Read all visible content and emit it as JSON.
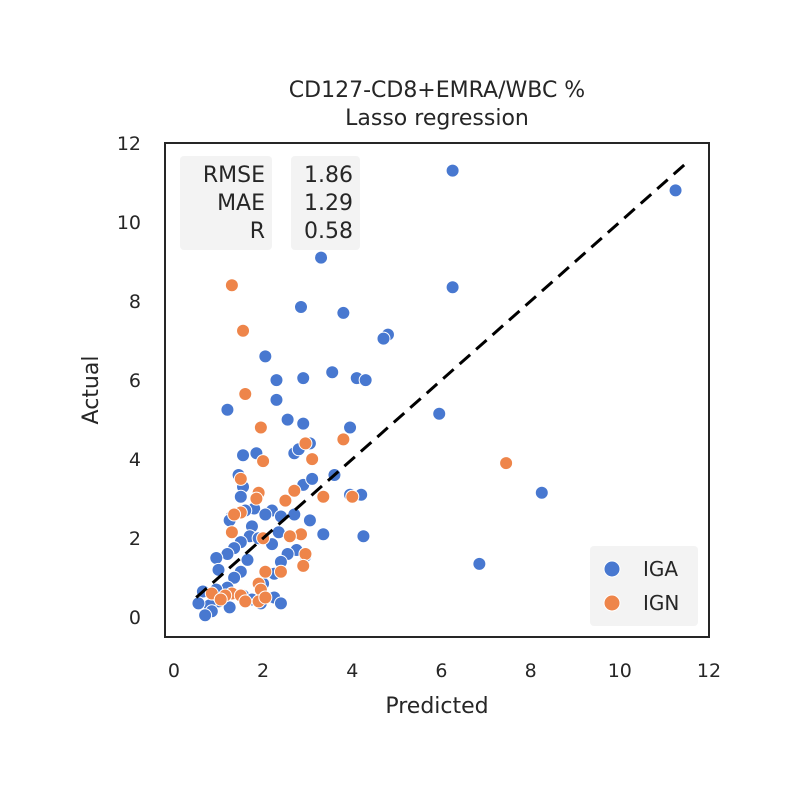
{
  "chart_data": {
    "type": "scatter",
    "title": "CD127-CD8+EMRA/WBC %",
    "subtitle": "Lasso regression",
    "xlabel": "Predicted",
    "ylabel": "Actual",
    "xlim": [
      -0.2,
      12
    ],
    "ylim": [
      -0.5,
      12
    ],
    "xticks": [
      0,
      2,
      4,
      6,
      8,
      10,
      12
    ],
    "yticks": [
      0,
      2,
      4,
      6,
      8,
      10,
      12
    ],
    "grid": false,
    "legend_position": "bottom-right",
    "identity_line": {
      "style": "dashed",
      "color": "#000000",
      "from": 0.5,
      "to": 11.5
    },
    "stats": {
      "labels": [
        "RMSE",
        "MAE",
        "R"
      ],
      "values": [
        "1.86",
        "1.29",
        "0.58"
      ]
    },
    "series": [
      {
        "name": "IGA",
        "color": "#4878d0",
        "points": [
          [
            11.25,
            10.8
          ],
          [
            6.25,
            11.3
          ],
          [
            3.3,
            9.1
          ],
          [
            6.25,
            8.35
          ],
          [
            2.85,
            7.85
          ],
          [
            3.8,
            7.7
          ],
          [
            4.8,
            7.15
          ],
          [
            4.7,
            7.05
          ],
          [
            2.05,
            6.6
          ],
          [
            3.55,
            6.2
          ],
          [
            4.1,
            6.05
          ],
          [
            4.3,
            6.0
          ],
          [
            2.9,
            6.05
          ],
          [
            2.3,
            6.0
          ],
          [
            2.3,
            5.5
          ],
          [
            1.2,
            5.25
          ],
          [
            5.95,
            5.15
          ],
          [
            2.55,
            5.0
          ],
          [
            2.9,
            4.9
          ],
          [
            3.95,
            4.8
          ],
          [
            1.55,
            4.1
          ],
          [
            1.85,
            4.15
          ],
          [
            2.7,
            4.15
          ],
          [
            3.05,
            4.4
          ],
          [
            2.8,
            4.25
          ],
          [
            3.6,
            3.6
          ],
          [
            1.45,
            3.6
          ],
          [
            2.9,
            3.35
          ],
          [
            3.1,
            3.5
          ],
          [
            3.95,
            3.1
          ],
          [
            4.2,
            3.1
          ],
          [
            8.25,
            3.15
          ],
          [
            1.55,
            3.3
          ],
          [
            1.5,
            3.05
          ],
          [
            1.8,
            2.75
          ],
          [
            1.6,
            2.7
          ],
          [
            2.2,
            2.7
          ],
          [
            2.4,
            2.55
          ],
          [
            1.3,
            2.55
          ],
          [
            2.05,
            2.6
          ],
          [
            2.7,
            2.6
          ],
          [
            3.05,
            2.45
          ],
          [
            1.25,
            2.45
          ],
          [
            1.75,
            2.3
          ],
          [
            2.35,
            2.15
          ],
          [
            1.7,
            2.05
          ],
          [
            3.35,
            2.1
          ],
          [
            4.25,
            2.05
          ],
          [
            1.5,
            1.9
          ],
          [
            1.9,
            2.0
          ],
          [
            2.2,
            1.85
          ],
          [
            2.95,
            1.55
          ],
          [
            2.75,
            1.7
          ],
          [
            2.55,
            1.6
          ],
          [
            1.35,
            1.75
          ],
          [
            1.2,
            1.6
          ],
          [
            0.95,
            1.5
          ],
          [
            1.65,
            1.45
          ],
          [
            2.4,
            1.4
          ],
          [
            6.85,
            1.35
          ],
          [
            1.0,
            1.2
          ],
          [
            1.5,
            1.15
          ],
          [
            2.25,
            1.1
          ],
          [
            1.35,
            1.0
          ],
          [
            2.0,
            0.85
          ],
          [
            1.2,
            0.75
          ],
          [
            0.95,
            0.7
          ],
          [
            0.65,
            0.65
          ],
          [
            1.55,
            0.55
          ],
          [
            2.25,
            0.5
          ],
          [
            2.4,
            0.35
          ],
          [
            1.75,
            0.45
          ],
          [
            1.0,
            0.4
          ],
          [
            1.95,
            0.35
          ],
          [
            0.8,
            0.3
          ],
          [
            1.25,
            0.25
          ],
          [
            0.85,
            0.15
          ],
          [
            0.7,
            0.05
          ],
          [
            0.55,
            0.35
          ]
        ]
      },
      {
        "name": "IGN",
        "color": "#ee854a",
        "points": [
          [
            1.3,
            8.4
          ],
          [
            1.55,
            7.25
          ],
          [
            1.6,
            5.65
          ],
          [
            1.95,
            4.8
          ],
          [
            2.0,
            3.95
          ],
          [
            3.8,
            4.5
          ],
          [
            2.95,
            4.4
          ],
          [
            3.1,
            4.0
          ],
          [
            7.45,
            3.9
          ],
          [
            1.5,
            3.5
          ],
          [
            1.9,
            3.15
          ],
          [
            1.85,
            3.0
          ],
          [
            2.7,
            3.2
          ],
          [
            2.5,
            2.95
          ],
          [
            3.35,
            3.05
          ],
          [
            4.0,
            3.05
          ],
          [
            1.5,
            2.65
          ],
          [
            1.35,
            2.6
          ],
          [
            2.0,
            2.0
          ],
          [
            2.85,
            2.1
          ],
          [
            2.6,
            2.05
          ],
          [
            1.3,
            2.15
          ],
          [
            2.95,
            1.6
          ],
          [
            2.05,
            1.15
          ],
          [
            2.9,
            1.3
          ],
          [
            2.4,
            1.15
          ],
          [
            1.9,
            0.85
          ],
          [
            1.95,
            0.7
          ],
          [
            1.3,
            0.6
          ],
          [
            1.5,
            0.55
          ],
          [
            0.85,
            0.6
          ],
          [
            1.15,
            0.55
          ],
          [
            1.6,
            0.4
          ],
          [
            1.05,
            0.45
          ],
          [
            1.9,
            0.4
          ],
          [
            2.05,
            0.5
          ]
        ]
      }
    ]
  }
}
